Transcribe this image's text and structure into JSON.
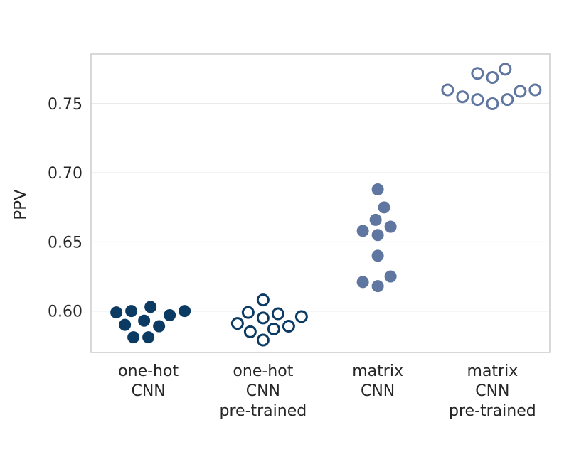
{
  "chart_data": {
    "type": "scatter",
    "style": "swarm",
    "ylabel": "PPV",
    "yticks": [
      "0.60",
      "0.65",
      "0.70",
      "0.75"
    ],
    "ylim": [
      0.57,
      0.786
    ],
    "grid": "horizontal",
    "categories": [
      {
        "lines": [
          "one-hot",
          "CNN"
        ],
        "color": "#0b3a63",
        "filled": true,
        "values": [
          0.6,
          0.593,
          0.603,
          0.59,
          0.581,
          0.599,
          0.581,
          0.589,
          0.597,
          0.6
        ]
      },
      {
        "lines": [
          "one-hot",
          "CNN",
          "pre-trained"
        ],
        "color": "#0b3a63",
        "filled": false,
        "values": [
          0.599,
          0.591,
          0.585,
          0.595,
          0.579,
          0.608,
          0.587,
          0.598,
          0.589,
          0.596
        ]
      },
      {
        "lines": [
          "matrix",
          "CNN"
        ],
        "color": "#5f76a0",
        "filled": true,
        "values": [
          0.688,
          0.675,
          0.666,
          0.661,
          0.655,
          0.658,
          0.64,
          0.621,
          0.618,
          0.625
        ]
      },
      {
        "lines": [
          "matrix",
          "CNN",
          "pre-trained"
        ],
        "color": "#5f76a0",
        "filled": false,
        "values": [
          0.76,
          0.755,
          0.772,
          0.753,
          0.769,
          0.75,
          0.775,
          0.753,
          0.759,
          0.76
        ]
      }
    ]
  }
}
